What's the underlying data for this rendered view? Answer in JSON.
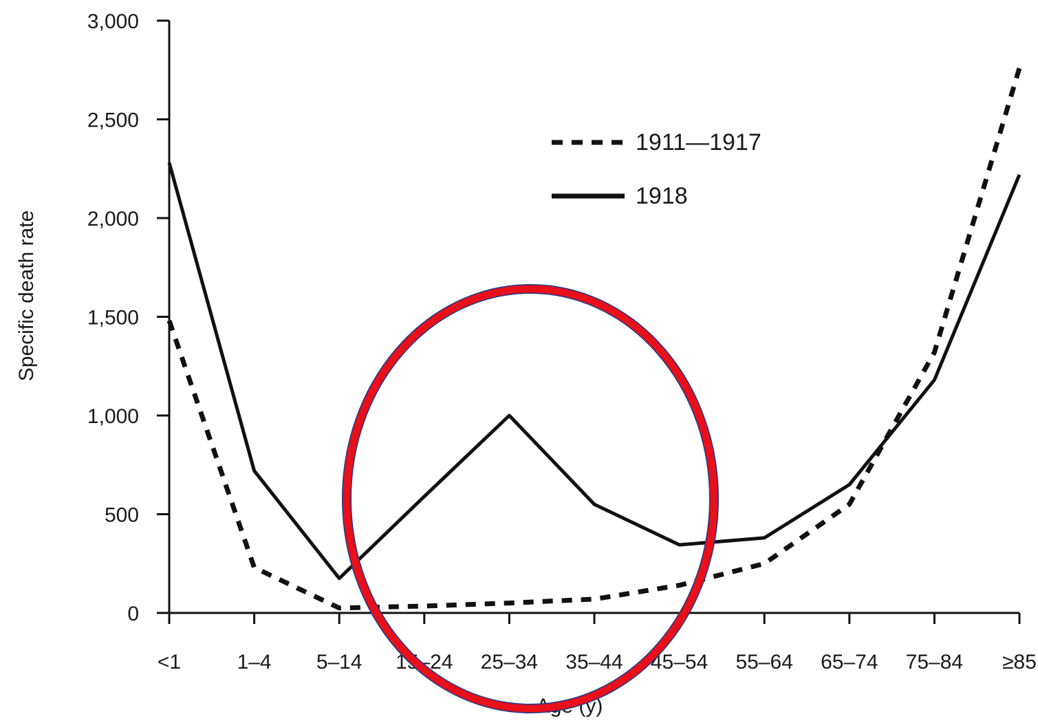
{
  "chart_data": {
    "type": "line",
    "title": "",
    "xlabel": "Age (y)",
    "ylabel": "Specific death rate",
    "categories": [
      "<1",
      "1–4",
      "5–14",
      "15–24",
      "25–34",
      "35–44",
      "45–54",
      "55–64",
      "65–74",
      "75–84",
      "≥85"
    ],
    "ylim": [
      0,
      3000
    ],
    "yticks": [
      0,
      500,
      1000,
      1500,
      2000,
      2500,
      3000
    ],
    "ytick_labels": [
      "0",
      "500",
      "1,000",
      "1,500",
      "2,000",
      "2,500",
      "3,000"
    ],
    "grid": false,
    "legend_position": "top-right",
    "series": [
      {
        "name": "1911—1917",
        "style": "dashed",
        "color": "#111111",
        "values": [
          1480,
          230,
          25,
          35,
          50,
          70,
          140,
          250,
          550,
          1320,
          2760
        ]
      },
      {
        "name": "1918",
        "style": "solid",
        "color": "#111111",
        "values": [
          2280,
          720,
          175,
          590,
          1000,
          550,
          345,
          380,
          650,
          1180,
          2220
        ]
      }
    ],
    "annotation": {
      "shape": "ellipse",
      "color": "#e8101a",
      "highlights": [
        "15–24",
        "25–34",
        "35–44",
        "45–54"
      ]
    }
  }
}
